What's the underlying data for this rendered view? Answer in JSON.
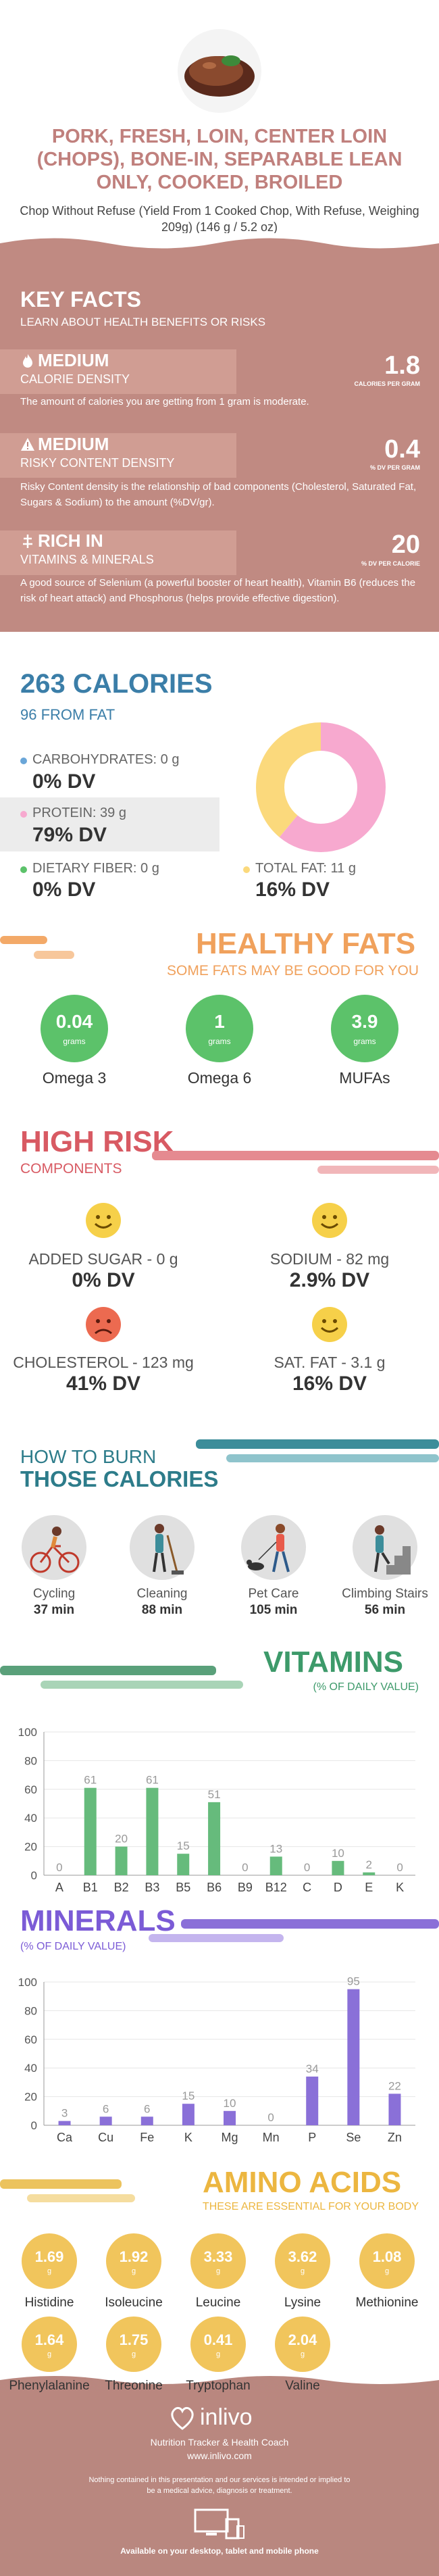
{
  "header": {
    "title": "PORK, FRESH, LOIN, CENTER LOIN (CHOPS), BONE-IN, SEPARABLE LEAN ONLY, COOKED, BROILED",
    "subtitle": "Chop Without Refuse (Yield From 1 Cooked Chop, With Refuse, Weighing 209g) (146 g / 5.2 oz)"
  },
  "key_facts": {
    "heading": "KEY FACTS",
    "subheading": "LEARN ABOUT HEALTH BENEFITS OR RISKS",
    "facts": [
      {
        "level": "MEDIUM",
        "name": "CALORIE DENSITY",
        "value": "1.8",
        "unit": "CALORIES PER GRAM",
        "desc": "The amount of calories you are getting from 1 gram is moderate."
      },
      {
        "level": "MEDIUM",
        "name": "RISKY CONTENT DENSITY",
        "value": "0.4",
        "unit": "% DV PER GRAM",
        "desc": "Risky Content density is the relationship of bad components (Cholesterol, Saturated Fat, Sugars & Sodium) to the amount (%DV/gr)."
      },
      {
        "level": "RICH IN",
        "name": "VITAMINS & MINERALS",
        "value": "20",
        "unit": "% DV PER CALORIE",
        "desc": "A good source of Selenium (a powerful booster of heart health), Vitamin B6 (reduces the risk of heart attack) and Phosphorus (helps provide effective digestion)."
      }
    ]
  },
  "calories": {
    "heading": "263 CALORIES",
    "from_fat": "96 FROM FAT",
    "carbs_label": "CARBOHYDRATES: 0 g",
    "carbs_dv": "0% DV",
    "protein_label": "PROTEIN: 39 g",
    "protein_dv": "79% DV",
    "fiber_label": "DIETARY FIBER: 0 g",
    "fiber_dv": "0% DV",
    "fat_label": "TOTAL FAT: 11 g",
    "fat_dv": "16% DV",
    "donut": {
      "protein_fraction": 0.61,
      "fat_fraction": 0.39,
      "protein_color": "#f7a9cf",
      "fat_color": "#fbd97c"
    }
  },
  "healthy_fats": {
    "heading": "HEALTHY FATS",
    "subheading": "SOME FATS MAY BE GOOD FOR YOU",
    "items": [
      {
        "value": "0.04",
        "unit": "grams",
        "label": "Omega 3"
      },
      {
        "value": "1",
        "unit": "grams",
        "label": "Omega 6"
      },
      {
        "value": "3.9",
        "unit": "grams",
        "label": "MUFAs"
      }
    ]
  },
  "high_risk": {
    "heading": "HIGH RISK",
    "subheading": "COMPONENTS",
    "items": [
      {
        "label": "ADDED SUGAR - 0 g",
        "dv": "0% DV",
        "face": "happy-face-icon"
      },
      {
        "label": "SODIUM - 82 mg",
        "dv": "2.9% DV",
        "face": "happy-face-icon"
      },
      {
        "label": "CHOLESTEROL - 123 mg",
        "dv": "41% DV",
        "face": "sad-face-icon"
      },
      {
        "label": "SAT. FAT - 3.1 g",
        "dv": "16% DV",
        "face": "happy-face-icon"
      }
    ]
  },
  "burn": {
    "heading1": "HOW TO BURN",
    "heading2": "THOSE CALORIES",
    "items": [
      {
        "label": "Cycling",
        "minutes": "37 min",
        "icon": "cycling-icon"
      },
      {
        "label": "Cleaning",
        "minutes": "88 min",
        "icon": "cleaning-icon"
      },
      {
        "label": "Pet Care",
        "minutes": "105 min",
        "icon": "pet-care-icon"
      },
      {
        "label": "Climbing Stairs",
        "minutes": "56 min",
        "icon": "climbing-stairs-icon"
      }
    ]
  },
  "vitamins": {
    "heading": "VITAMINS",
    "subheading": "(% OF DAILY VALUE)"
  },
  "minerals": {
    "heading": "MINERALS",
    "subheading": "(% OF DAILY VALUE)"
  },
  "chart_data": [
    {
      "type": "bar",
      "categories": [
        "A",
        "B1",
        "B2",
        "B3",
        "B5",
        "B6",
        "B9",
        "B12",
        "C",
        "D",
        "E",
        "K"
      ],
      "values": [
        0,
        61,
        20,
        61,
        15,
        51,
        0,
        13,
        0,
        10,
        2,
        0
      ],
      "ylim": [
        0,
        100
      ],
      "yticks": [
        0,
        20,
        40,
        60,
        80,
        100
      ],
      "color": "#66bb7c"
    },
    {
      "type": "bar",
      "categories": [
        "Ca",
        "Cu",
        "Fe",
        "K",
        "Mg",
        "Mn",
        "P",
        "Se",
        "Zn"
      ],
      "values": [
        3,
        6,
        6,
        15,
        10,
        0,
        34,
        95,
        22
      ],
      "ylim": [
        0,
        100
      ],
      "yticks": [
        0,
        20,
        40,
        60,
        80,
        100
      ],
      "color": "#8a70d8"
    }
  ],
  "amino_acids": {
    "heading": "AMINO ACIDS",
    "subheading": "THESE ARE ESSENTIAL FOR YOUR BODY",
    "items": [
      {
        "value": "1.69",
        "unit": "g",
        "label": "Histidine"
      },
      {
        "value": "1.92",
        "unit": "g",
        "label": "Isoleucine"
      },
      {
        "value": "3.33",
        "unit": "g",
        "label": "Leucine"
      },
      {
        "value": "3.62",
        "unit": "g",
        "label": "Lysine"
      },
      {
        "value": "1.08",
        "unit": "g",
        "label": "Methionine"
      },
      {
        "value": "1.64",
        "unit": "g",
        "label": "Phenylalanine"
      },
      {
        "value": "1.75",
        "unit": "g",
        "label": "Threonine"
      },
      {
        "value": "0.41",
        "unit": "g",
        "label": "Tryptophan"
      },
      {
        "value": "2.04",
        "unit": "g",
        "label": "Valine"
      }
    ]
  },
  "footer": {
    "brand": "inlivo",
    "tagline": "Nutrition Tracker & Health Coach",
    "url": "www.inlivo.com",
    "disclaimer": "Nothing contained in this presentation and our services is intended or implied to be a medical advice, diagnosis or treatment.",
    "devices": "Available on your desktop, tablet and mobile phone"
  }
}
